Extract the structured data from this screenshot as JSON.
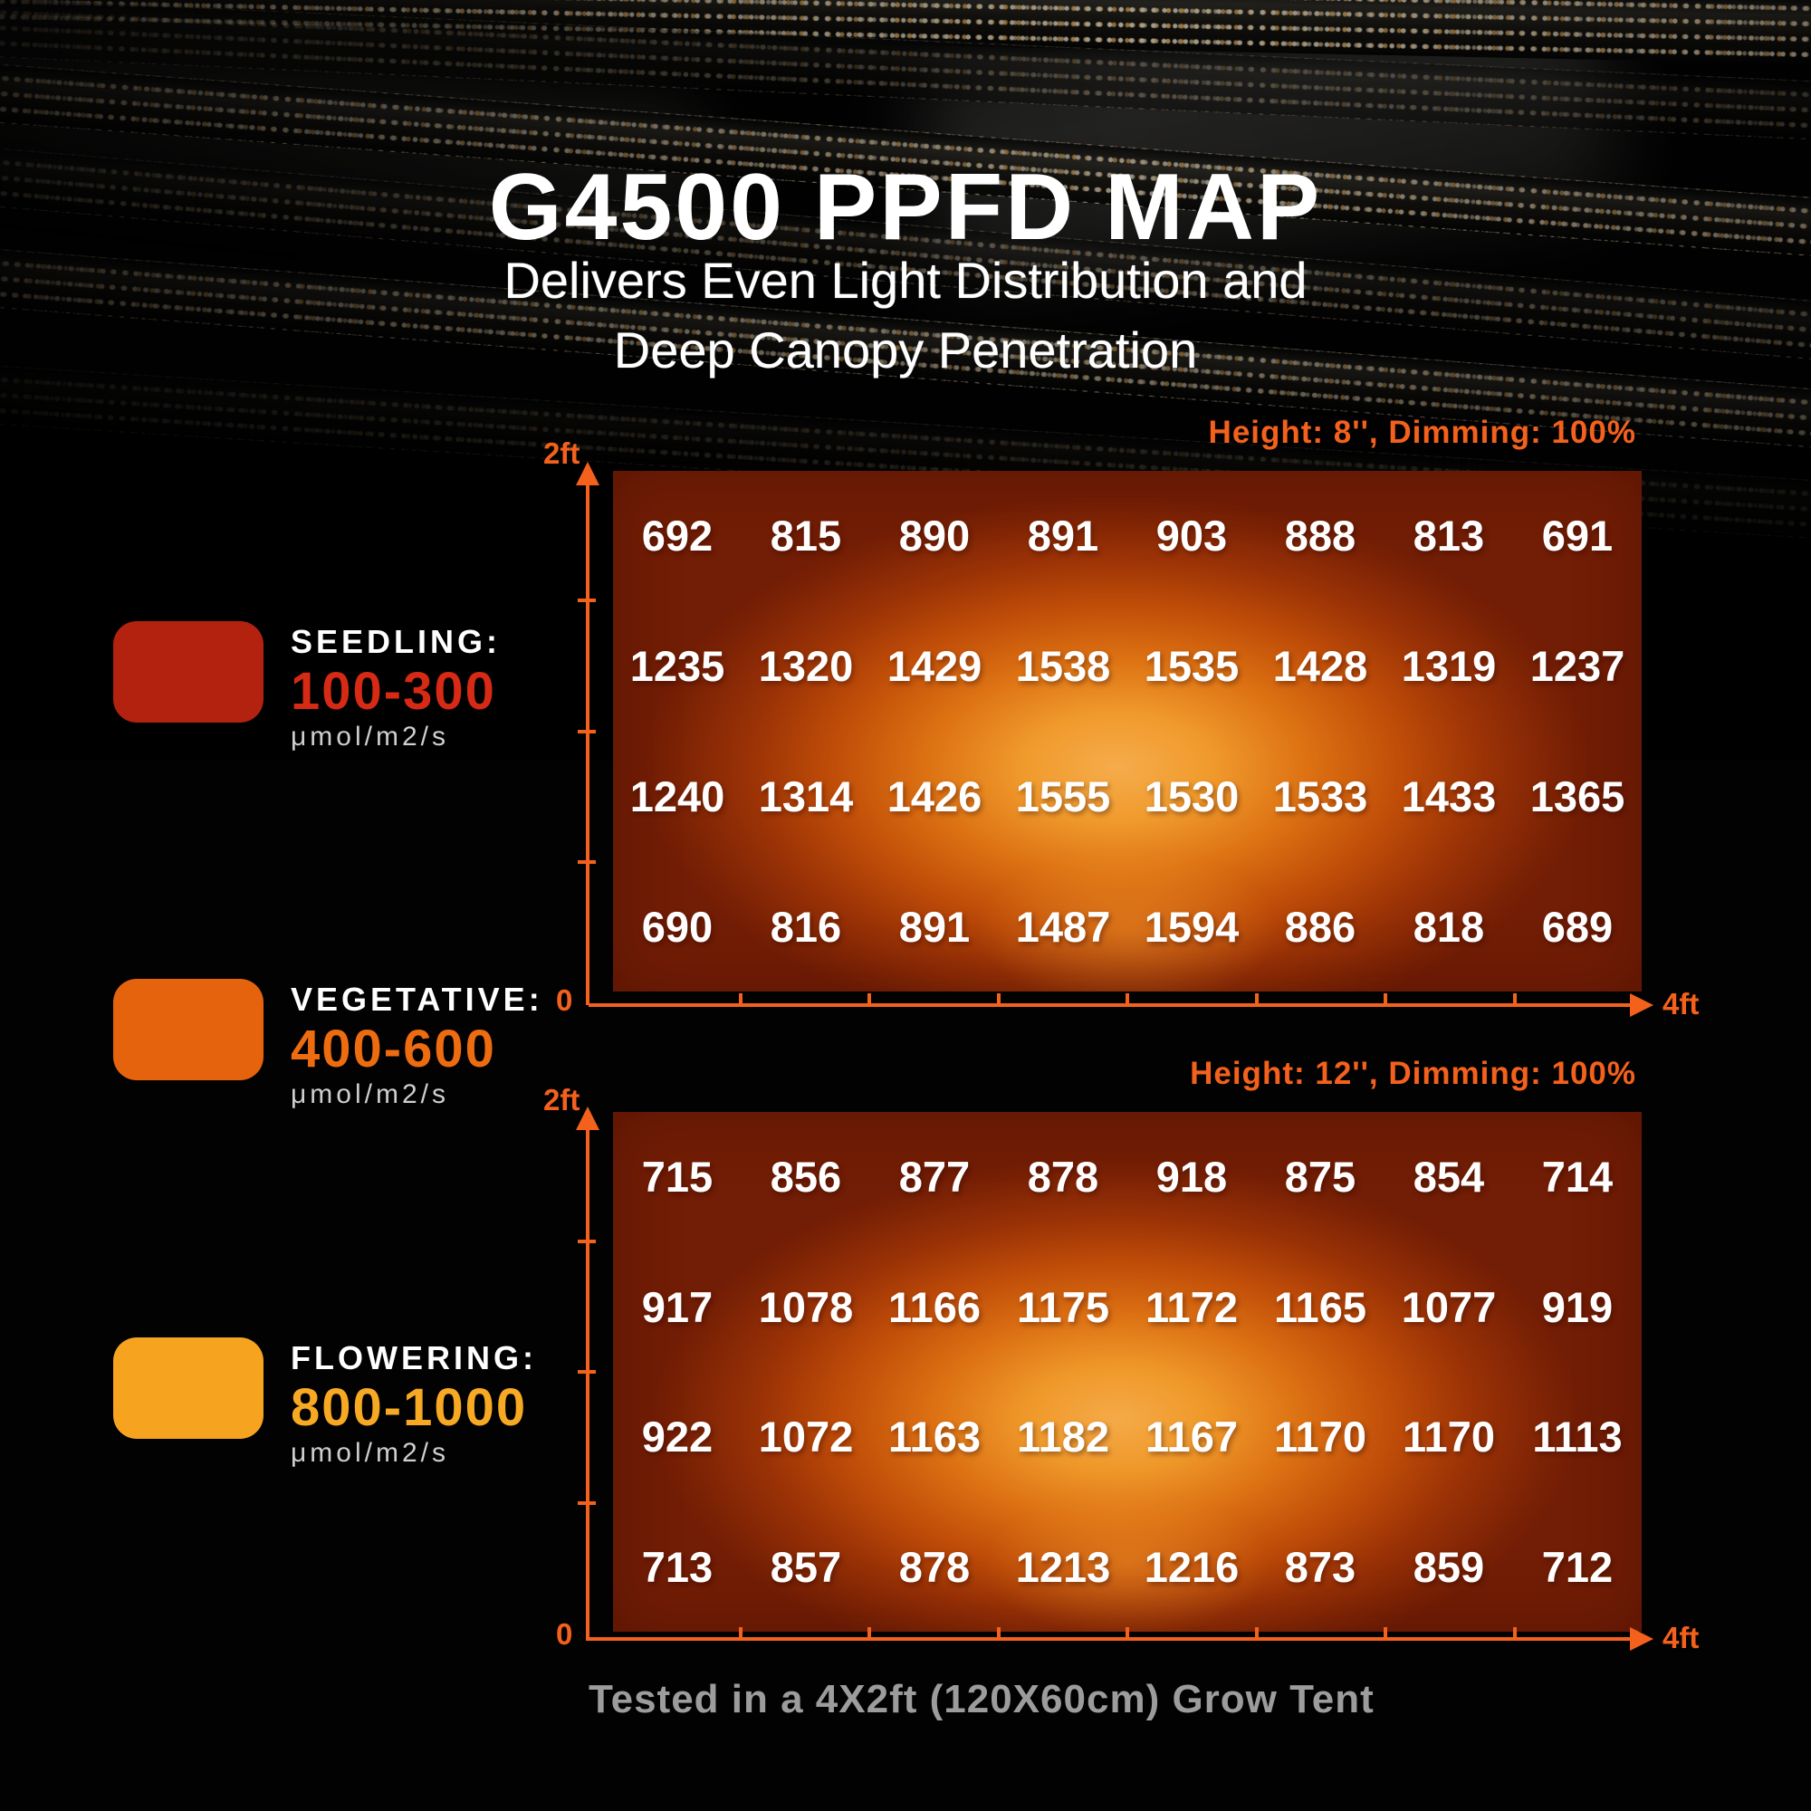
{
  "page": {
    "title": "G4500 PPFD MAP",
    "subtitle_line1": "Delivers Even Light Distribution and",
    "subtitle_line2": "Deep Canopy Penetration",
    "footer_note": "Tested in a 4X2ft (120X60cm) Grow Tent"
  },
  "legend": {
    "items": [
      {
        "label": "SEEDLING:",
        "range": "100-300",
        "unit": "μmol/m2/s",
        "swatch_color": "#b2220f",
        "range_color": "#d62a15"
      },
      {
        "label": "VEGETATIVE:",
        "range": "400-600",
        "unit": "μmol/m2/s",
        "swatch_color": "#e6630e",
        "range_color": "#ed6c10"
      },
      {
        "label": "FLOWERING:",
        "range": "800-1000",
        "unit": "μmol/m2/s",
        "swatch_color": "#f6a41f",
        "range_color": "#f7a923"
      }
    ]
  },
  "chart_data": [
    {
      "type": "heatmap",
      "title": "Height: 8'', Dimming: 100%",
      "x_axis": {
        "origin_label": "0",
        "end_label": "4ft",
        "tick_count": 7
      },
      "y_axis": {
        "top_label": "2ft",
        "tick_count": 3
      },
      "columns": 8,
      "rows": 4,
      "values": [
        [
          692,
          815,
          890,
          891,
          903,
          888,
          813,
          691
        ],
        [
          1235,
          1320,
          1429,
          1538,
          1535,
          1428,
          1319,
          1237
        ],
        [
          1240,
          1314,
          1426,
          1555,
          1530,
          1533,
          1433,
          1365
        ],
        [
          690,
          816,
          891,
          1487,
          1594,
          886,
          818,
          689
        ]
      ]
    },
    {
      "type": "heatmap",
      "title": "Height: 12'', Dimming: 100%",
      "x_axis": {
        "origin_label": "0",
        "end_label": "4ft",
        "tick_count": 7
      },
      "y_axis": {
        "top_label": "2ft",
        "tick_count": 3
      },
      "columns": 8,
      "rows": 4,
      "values": [
        [
          715,
          856,
          877,
          878,
          918,
          875,
          854,
          714
        ],
        [
          917,
          1078,
          1166,
          1175,
          1172,
          1165,
          1077,
          919
        ],
        [
          922,
          1072,
          1163,
          1182,
          1167,
          1170,
          1170,
          1113
        ],
        [
          713,
          857,
          878,
          1213,
          1216,
          873,
          859,
          712
        ]
      ]
    }
  ],
  "colors": {
    "accent_orange": "#f4611c",
    "heat_core": "#f6ac4b",
    "heat_edge": "#721d05",
    "value_text": "#ffffff",
    "footer_gray": "#9c9c9c",
    "background": "#020202"
  }
}
